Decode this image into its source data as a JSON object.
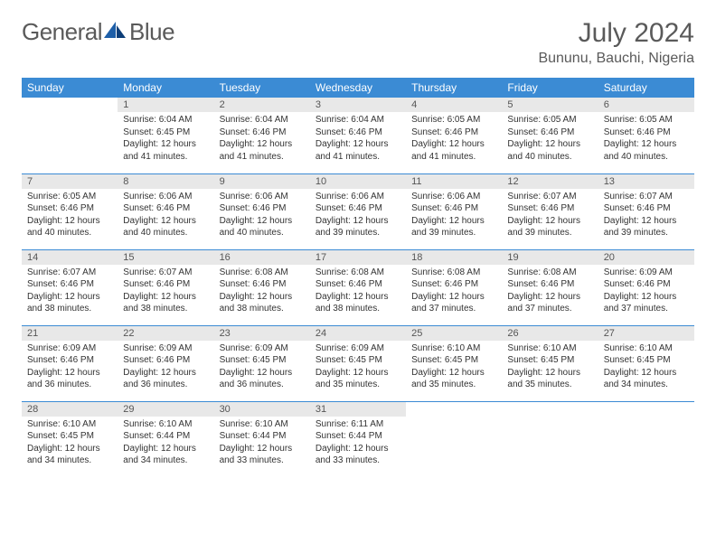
{
  "logo": {
    "text1": "General",
    "text2": "Blue"
  },
  "title": "July 2024",
  "location": "Bununu, Bauchi, Nigeria",
  "colors": {
    "header_bg": "#3b8bd4",
    "header_text": "#ffffff",
    "daynum_bg": "#e8e8e8",
    "border": "#3b8bd4",
    "text": "#333333",
    "logo_gray": "#5a5a5a",
    "logo_blue": "#1e5fa8"
  },
  "days_of_week": [
    "Sunday",
    "Monday",
    "Tuesday",
    "Wednesday",
    "Thursday",
    "Friday",
    "Saturday"
  ],
  "weeks": [
    [
      {
        "date": "",
        "sunrise": "",
        "sunset": "",
        "daylight": ""
      },
      {
        "date": "1",
        "sunrise": "Sunrise: 6:04 AM",
        "sunset": "Sunset: 6:45 PM",
        "daylight": "Daylight: 12 hours and 41 minutes."
      },
      {
        "date": "2",
        "sunrise": "Sunrise: 6:04 AM",
        "sunset": "Sunset: 6:46 PM",
        "daylight": "Daylight: 12 hours and 41 minutes."
      },
      {
        "date": "3",
        "sunrise": "Sunrise: 6:04 AM",
        "sunset": "Sunset: 6:46 PM",
        "daylight": "Daylight: 12 hours and 41 minutes."
      },
      {
        "date": "4",
        "sunrise": "Sunrise: 6:05 AM",
        "sunset": "Sunset: 6:46 PM",
        "daylight": "Daylight: 12 hours and 41 minutes."
      },
      {
        "date": "5",
        "sunrise": "Sunrise: 6:05 AM",
        "sunset": "Sunset: 6:46 PM",
        "daylight": "Daylight: 12 hours and 40 minutes."
      },
      {
        "date": "6",
        "sunrise": "Sunrise: 6:05 AM",
        "sunset": "Sunset: 6:46 PM",
        "daylight": "Daylight: 12 hours and 40 minutes."
      }
    ],
    [
      {
        "date": "7",
        "sunrise": "Sunrise: 6:05 AM",
        "sunset": "Sunset: 6:46 PM",
        "daylight": "Daylight: 12 hours and 40 minutes."
      },
      {
        "date": "8",
        "sunrise": "Sunrise: 6:06 AM",
        "sunset": "Sunset: 6:46 PM",
        "daylight": "Daylight: 12 hours and 40 minutes."
      },
      {
        "date": "9",
        "sunrise": "Sunrise: 6:06 AM",
        "sunset": "Sunset: 6:46 PM",
        "daylight": "Daylight: 12 hours and 40 minutes."
      },
      {
        "date": "10",
        "sunrise": "Sunrise: 6:06 AM",
        "sunset": "Sunset: 6:46 PM",
        "daylight": "Daylight: 12 hours and 39 minutes."
      },
      {
        "date": "11",
        "sunrise": "Sunrise: 6:06 AM",
        "sunset": "Sunset: 6:46 PM",
        "daylight": "Daylight: 12 hours and 39 minutes."
      },
      {
        "date": "12",
        "sunrise": "Sunrise: 6:07 AM",
        "sunset": "Sunset: 6:46 PM",
        "daylight": "Daylight: 12 hours and 39 minutes."
      },
      {
        "date": "13",
        "sunrise": "Sunrise: 6:07 AM",
        "sunset": "Sunset: 6:46 PM",
        "daylight": "Daylight: 12 hours and 39 minutes."
      }
    ],
    [
      {
        "date": "14",
        "sunrise": "Sunrise: 6:07 AM",
        "sunset": "Sunset: 6:46 PM",
        "daylight": "Daylight: 12 hours and 38 minutes."
      },
      {
        "date": "15",
        "sunrise": "Sunrise: 6:07 AM",
        "sunset": "Sunset: 6:46 PM",
        "daylight": "Daylight: 12 hours and 38 minutes."
      },
      {
        "date": "16",
        "sunrise": "Sunrise: 6:08 AM",
        "sunset": "Sunset: 6:46 PM",
        "daylight": "Daylight: 12 hours and 38 minutes."
      },
      {
        "date": "17",
        "sunrise": "Sunrise: 6:08 AM",
        "sunset": "Sunset: 6:46 PM",
        "daylight": "Daylight: 12 hours and 38 minutes."
      },
      {
        "date": "18",
        "sunrise": "Sunrise: 6:08 AM",
        "sunset": "Sunset: 6:46 PM",
        "daylight": "Daylight: 12 hours and 37 minutes."
      },
      {
        "date": "19",
        "sunrise": "Sunrise: 6:08 AM",
        "sunset": "Sunset: 6:46 PM",
        "daylight": "Daylight: 12 hours and 37 minutes."
      },
      {
        "date": "20",
        "sunrise": "Sunrise: 6:09 AM",
        "sunset": "Sunset: 6:46 PM",
        "daylight": "Daylight: 12 hours and 37 minutes."
      }
    ],
    [
      {
        "date": "21",
        "sunrise": "Sunrise: 6:09 AM",
        "sunset": "Sunset: 6:46 PM",
        "daylight": "Daylight: 12 hours and 36 minutes."
      },
      {
        "date": "22",
        "sunrise": "Sunrise: 6:09 AM",
        "sunset": "Sunset: 6:46 PM",
        "daylight": "Daylight: 12 hours and 36 minutes."
      },
      {
        "date": "23",
        "sunrise": "Sunrise: 6:09 AM",
        "sunset": "Sunset: 6:45 PM",
        "daylight": "Daylight: 12 hours and 36 minutes."
      },
      {
        "date": "24",
        "sunrise": "Sunrise: 6:09 AM",
        "sunset": "Sunset: 6:45 PM",
        "daylight": "Daylight: 12 hours and 35 minutes."
      },
      {
        "date": "25",
        "sunrise": "Sunrise: 6:10 AM",
        "sunset": "Sunset: 6:45 PM",
        "daylight": "Daylight: 12 hours and 35 minutes."
      },
      {
        "date": "26",
        "sunrise": "Sunrise: 6:10 AM",
        "sunset": "Sunset: 6:45 PM",
        "daylight": "Daylight: 12 hours and 35 minutes."
      },
      {
        "date": "27",
        "sunrise": "Sunrise: 6:10 AM",
        "sunset": "Sunset: 6:45 PM",
        "daylight": "Daylight: 12 hours and 34 minutes."
      }
    ],
    [
      {
        "date": "28",
        "sunrise": "Sunrise: 6:10 AM",
        "sunset": "Sunset: 6:45 PM",
        "daylight": "Daylight: 12 hours and 34 minutes."
      },
      {
        "date": "29",
        "sunrise": "Sunrise: 6:10 AM",
        "sunset": "Sunset: 6:44 PM",
        "daylight": "Daylight: 12 hours and 34 minutes."
      },
      {
        "date": "30",
        "sunrise": "Sunrise: 6:10 AM",
        "sunset": "Sunset: 6:44 PM",
        "daylight": "Daylight: 12 hours and 33 minutes."
      },
      {
        "date": "31",
        "sunrise": "Sunrise: 6:11 AM",
        "sunset": "Sunset: 6:44 PM",
        "daylight": "Daylight: 12 hours and 33 minutes."
      },
      {
        "date": "",
        "sunrise": "",
        "sunset": "",
        "daylight": ""
      },
      {
        "date": "",
        "sunrise": "",
        "sunset": "",
        "daylight": ""
      },
      {
        "date": "",
        "sunrise": "",
        "sunset": "",
        "daylight": ""
      }
    ]
  ]
}
